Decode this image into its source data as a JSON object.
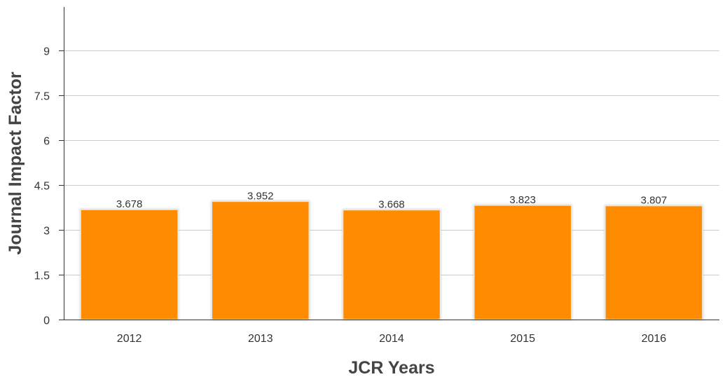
{
  "chart_data": {
    "type": "bar",
    "title": "",
    "xlabel": "JCR Years",
    "ylabel": "Journal Impact Factor",
    "categories": [
      "2012",
      "2013",
      "2014",
      "2015",
      "2016"
    ],
    "series": [
      {
        "values": [
          3.678,
          3.952,
          3.668,
          3.823,
          3.807
        ],
        "labels": [
          "3.678",
          "3.952",
          "3.668",
          "3.823",
          "3.807"
        ]
      }
    ],
    "ylim": [
      0,
      10.5
    ],
    "yticks": [
      0,
      1.5,
      3,
      4.5,
      6,
      7.5,
      9
    ],
    "ytick_labels": [
      "0",
      "1.5",
      "3",
      "4.5",
      "6",
      "7.5",
      "9"
    ],
    "grid": true,
    "legend": "none",
    "colors": {
      "bar": "#FF8C00",
      "bar_edge": "#E8E8E8",
      "grid": "#CCCCCC",
      "axis": "#333333"
    }
  }
}
